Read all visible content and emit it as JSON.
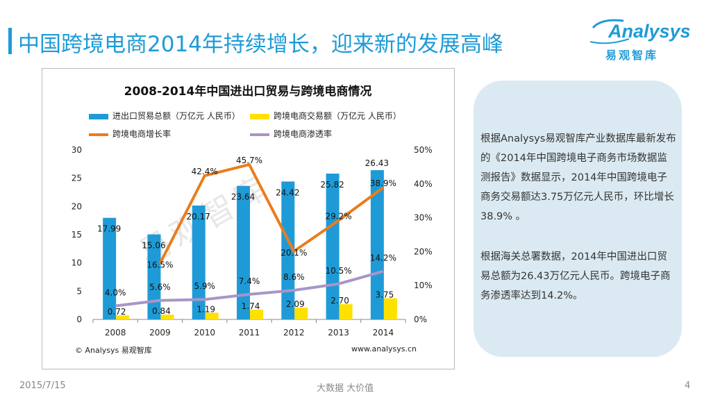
{
  "slide": {
    "title": "中国跨境电商2014年持续增长，迎来新的发展高峰",
    "logo_word": "Analysys",
    "logo_cn": "易观智库",
    "copyright": "© Analysys 易观智库",
    "website": "www.analysys.cn",
    "watermark": "易观智库"
  },
  "panel": {
    "para1": "根据Analysys易观智库产业数据库最新发布的《2014年中国跨境电子商务市场数据监测报告》数据显示，2014年中国跨境电子商务交易额达3.75万亿元人民币，环比增长38.9% 。",
    "para2": "根据海关总署数据，2014年中国进出口贸易总额为26.43万亿元人民币。跨境电子商务渗透率达到14.2%。"
  },
  "footer": {
    "date": "2015/7/15",
    "center": "大数据    大价值",
    "page": "4"
  },
  "colors": {
    "blue": "#1e9bd7",
    "yellow": "#ffe100",
    "orange": "#ea7d1c",
    "purple": "#a895c6"
  },
  "chart_data": {
    "type": "bar",
    "title": "2008-2014年中国进出口贸易与跨境电商情况",
    "categories": [
      "2008",
      "2009",
      "2010",
      "2011",
      "2012",
      "2013",
      "2014"
    ],
    "series": [
      {
        "name": "进出口贸易总额（万亿元 人民币）",
        "type": "bar",
        "axis": "left",
        "values": [
          17.99,
          15.06,
          20.17,
          23.64,
          24.42,
          25.82,
          26.43
        ],
        "labels": [
          "17.99",
          "15.06",
          "20.17",
          "23.64",
          "24.42",
          "25.82",
          "26.43"
        ]
      },
      {
        "name": "跨境电商交易额（万亿元 人民币）",
        "type": "bar",
        "axis": "left",
        "values": [
          0.72,
          0.84,
          1.19,
          1.74,
          2.09,
          2.7,
          3.75
        ],
        "labels": [
          "0.72",
          "0.84",
          "1.19",
          "1.74",
          "2.09",
          "2.70",
          "3.75"
        ]
      },
      {
        "name": "跨境电商增长率",
        "type": "line",
        "axis": "right",
        "values": [
          null,
          16.5,
          42.4,
          45.7,
          20.1,
          29.2,
          38.9
        ],
        "labels": [
          "",
          "16.5%",
          "42.4%",
          "45.7%",
          "20.1%",
          "29.2%",
          "38.9%"
        ]
      },
      {
        "name": "跨境电商渗透率",
        "type": "line",
        "axis": "right",
        "values": [
          4.0,
          5.6,
          5.9,
          7.4,
          8.6,
          10.5,
          14.2
        ],
        "labels": [
          "4.0%",
          "5.6%",
          "5.9%",
          "7.4%",
          "8.6%",
          "10.5%",
          "14.2%"
        ]
      }
    ],
    "y_left": {
      "min": 0,
      "max": 30,
      "ticks": [
        "0",
        "5",
        "10",
        "15",
        "20",
        "25",
        "30"
      ]
    },
    "y_right": {
      "min": 0,
      "max": 50,
      "ticks": [
        "0%",
        "10%",
        "20%",
        "30%",
        "40%",
        "50%"
      ]
    },
    "legend_position": "top"
  }
}
